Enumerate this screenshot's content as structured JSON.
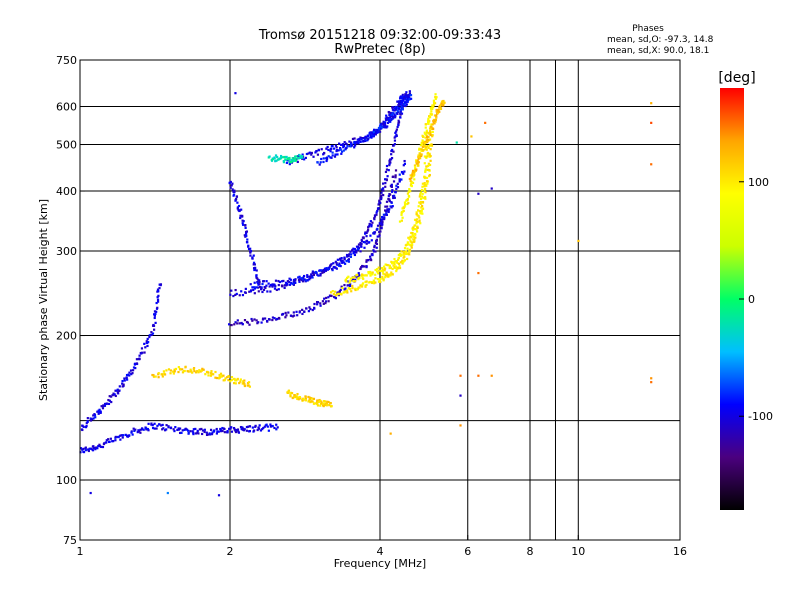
{
  "header": {
    "title_line1": "Tromsø 20151218 09:32:00-09:33:43",
    "title_line2": "RwPretec (8p)",
    "stats_title": "Phases",
    "stats_o": "mean, sd,O: -97.3, 14.8",
    "stats_x": "mean, sd,X:  90.0, 18.1"
  },
  "chart_data": {
    "type": "scatter",
    "title": "Tromsø 20151218 09:32:00-09:33:43",
    "subtitle": "RwPretec (8p)",
    "xlabel": "Frequency [MHz]",
    "ylabel": "Stationary phase Virtual Height [km]",
    "x_scale": "log",
    "y_scale": "log",
    "xlim": [
      1,
      16
    ],
    "ylim": [
      75,
      750
    ],
    "x_ticks": [
      1,
      2,
      4,
      6,
      8,
      10,
      16
    ],
    "x_tick_labels": [
      "1",
      "2",
      "4",
      "6",
      "8",
      "10",
      "16"
    ],
    "y_ticks": [
      75,
      100,
      200,
      300,
      400,
      500,
      600,
      750
    ],
    "y_tick_labels": [
      "75",
      "100",
      "200",
      "300",
      "400",
      "500",
      "600",
      "750"
    ],
    "x_gridlines": [
      2,
      4,
      6,
      8,
      9,
      10
    ],
    "y_gridlines": [
      100,
      133,
      200,
      300,
      400,
      500,
      600
    ],
    "grid": true,
    "colorbar": {
      "label": "[deg]",
      "range": [
        -180,
        180
      ],
      "ticks": [
        100,
        0,
        -100
      ],
      "tick_labels": [
        "100",
        "0",
        "-100"
      ],
      "colors": [
        "#000000",
        "#4b007f",
        "#0000ff",
        "#00bfff",
        "#00ff66",
        "#ccff00",
        "#ffff00",
        "#ffa500",
        "#ff0000"
      ]
    },
    "series": [
      {
        "traces": [
          {
            "x": [
              1.0,
              1.1,
              1.25,
              1.4,
              1.6,
              1.8,
              2.0,
              2.2,
              2.5
            ],
            "y": [
              115,
              118,
              125,
              130,
              127,
              126,
              127,
              128,
              129
            ],
            "phase": -100
          },
          {
            "x": [
              1.0,
              1.1,
              1.2,
              1.3,
              1.4,
              1.45
            ],
            "y": [
              128,
              140,
              155,
              175,
              205,
              260
            ],
            "phase": -100
          },
          {
            "x": [
              2.0,
              2.4,
              2.8,
              3.2,
              3.6,
              3.9,
              4.1,
              4.3
            ],
            "y": [
              212,
              215,
              225,
              240,
              265,
              300,
              360,
              440
            ],
            "phase": -110
          },
          {
            "x": [
              2.0,
              2.4,
              2.8,
              3.2,
              3.6,
              3.9,
              4.1,
              4.3,
              4.5
            ],
            "y": [
              245,
              250,
              262,
              278,
              305,
              350,
              420,
              520,
              640
            ],
            "phase": -105
          },
          {
            "x": [
              2.2,
              2.6,
              3.0,
              3.4,
              3.8,
              4.2,
              4.5
            ],
            "y": [
              255,
              258,
              268,
              285,
              315,
              370,
              460
            ],
            "phase": -95
          },
          {
            "x": [
              2.6,
              3.0,
              3.4,
              3.8,
              4.0,
              4.2,
              4.4,
              4.6
            ],
            "y": [
              460,
              480,
              500,
              520,
              540,
              580,
              620,
              640
            ],
            "phase": -100
          },
          {
            "x": [
              3.0,
              3.4,
              3.8,
              4.1,
              4.3,
              4.5,
              4.6
            ],
            "y": [
              455,
              490,
              520,
              550,
              580,
              610,
              630
            ],
            "phase": -90
          },
          {
            "x": [
              3.2,
              3.6,
              4.0,
              4.3,
              4.6,
              4.8,
              5.0,
              5.1
            ],
            "y": [
              245,
              252,
              262,
              275,
              300,
              350,
              430,
              550
            ],
            "phase": 100
          },
          {
            "x": [
              3.4,
              3.8,
              4.2,
              4.5,
              4.7,
              4.9,
              5.0
            ],
            "y": [
              260,
              268,
              280,
              300,
              340,
              420,
              520
            ],
            "phase": 95
          },
          {
            "x": [
              4.4,
              4.6,
              4.8,
              5.0,
              5.2
            ],
            "y": [
              350,
              400,
              480,
              560,
              640
            ],
            "phase": 90
          },
          {
            "x": [
              4.6,
              4.8,
              5.0,
              5.2,
              5.4
            ],
            "y": [
              420,
              470,
              520,
              580,
              620
            ],
            "phase": 120
          },
          {
            "x": [
              1.4,
              1.6,
              1.8,
              2.0,
              2.2
            ],
            "y": [
              165,
              170,
              168,
              162,
              158
            ],
            "phase": 110
          },
          {
            "x": [
              2.6,
              2.8,
              3.0,
              3.2
            ],
            "y": [
              152,
              148,
              145,
              143
            ],
            "phase": 110
          },
          {
            "x": [
              2.0,
              2.1,
              2.2,
              2.3
            ],
            "y": [
              420,
              360,
              300,
              250
            ],
            "phase": -100
          },
          {
            "x": [
              2.4,
              2.6,
              2.8
            ],
            "y": [
              470,
              465,
              470
            ],
            "phase": -20
          }
        ],
        "points": [
          {
            "x": 1.05,
            "y": 94,
            "phase": -100
          },
          {
            "x": 1.5,
            "y": 94,
            "phase": -60
          },
          {
            "x": 1.9,
            "y": 93,
            "phase": -100
          },
          {
            "x": 2.05,
            "y": 640,
            "phase": -100
          },
          {
            "x": 5.8,
            "y": 130,
            "phase": 140
          },
          {
            "x": 5.8,
            "y": 150,
            "phase": -110
          },
          {
            "x": 5.8,
            "y": 165,
            "phase": 150
          },
          {
            "x": 6.3,
            "y": 165,
            "phase": 150
          },
          {
            "x": 6.7,
            "y": 165,
            "phase": 140
          },
          {
            "x": 6.3,
            "y": 270,
            "phase": 150
          },
          {
            "x": 6.3,
            "y": 395,
            "phase": -110
          },
          {
            "x": 6.7,
            "y": 405,
            "phase": -110
          },
          {
            "x": 6.1,
            "y": 520,
            "phase": 120
          },
          {
            "x": 6.5,
            "y": 555,
            "phase": 150
          },
          {
            "x": 5.7,
            "y": 505,
            "phase": -20
          },
          {
            "x": 10.0,
            "y": 315,
            "phase": 120
          },
          {
            "x": 14.0,
            "y": 160,
            "phase": 150
          },
          {
            "x": 14.0,
            "y": 163,
            "phase": 140
          },
          {
            "x": 14.0,
            "y": 455,
            "phase": 150
          },
          {
            "x": 14.0,
            "y": 555,
            "phase": 160
          },
          {
            "x": 14.0,
            "y": 610,
            "phase": 130
          },
          {
            "x": 4.2,
            "y": 125,
            "phase": 130
          }
        ]
      }
    ]
  }
}
